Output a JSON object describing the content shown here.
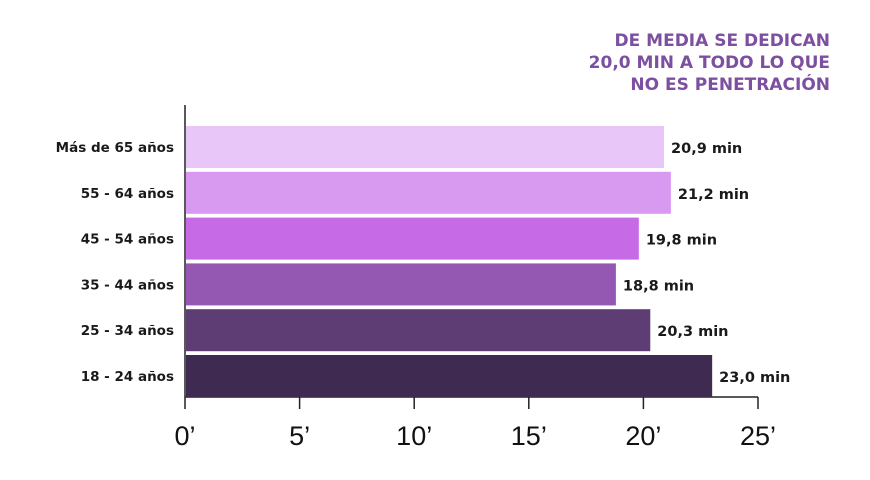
{
  "chart_data": {
    "type": "bar",
    "orientation": "horizontal",
    "title_lines": [
      "DE MEDIA SE DEDICAN",
      "20,0 MIN A TODO LO QUE",
      "NO ES PENETRACIÓN"
    ],
    "categories": [
      "Más de 65 años",
      "55 - 64 años",
      "45 - 54 años",
      "35 - 44 años",
      "25 - 34 años",
      "18 - 24 años"
    ],
    "values": [
      20.9,
      21.2,
      19.8,
      18.8,
      20.3,
      23.0
    ],
    "value_labels": [
      "20,9 min",
      "21,2 min",
      "19,8 min",
      "18,8 min",
      "20,3 min",
      "23,0 min"
    ],
    "colors": [
      "#e8c6f8",
      "#d89af0",
      "#c76ae6",
      "#9558b2",
      "#5e3d74",
      "#3f2b52"
    ],
    "xlim": [
      0,
      25
    ],
    "xticks": [
      0,
      5,
      10,
      15,
      20,
      25
    ],
    "xtick_labels": [
      "0’",
      "5’",
      "10’",
      "15’",
      "20’",
      "25’"
    ],
    "grid": false,
    "legend": "none"
  }
}
